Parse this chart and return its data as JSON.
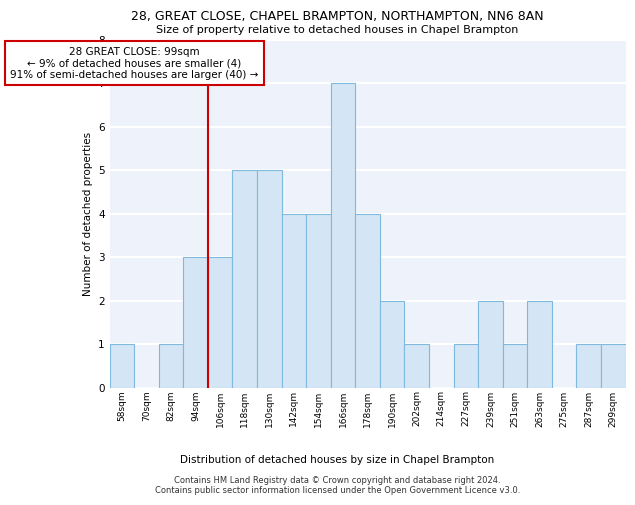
{
  "title1": "28, GREAT CLOSE, CHAPEL BRAMPTON, NORTHAMPTON, NN6 8AN",
  "title2": "Size of property relative to detached houses in Chapel Brampton",
  "xlabel": "Distribution of detached houses by size in Chapel Brampton",
  "ylabel": "Number of detached properties",
  "bin_labels": [
    "58sqm",
    "70sqm",
    "82sqm",
    "94sqm",
    "106sqm",
    "118sqm",
    "130sqm",
    "142sqm",
    "154sqm",
    "166sqm",
    "178sqm",
    "190sqm",
    "202sqm",
    "214sqm",
    "227sqm",
    "239sqm",
    "251sqm",
    "263sqm",
    "275sqm",
    "287sqm",
    "299sqm"
  ],
  "bar_heights": [
    1,
    0,
    1,
    3,
    3,
    5,
    5,
    4,
    4,
    7,
    4,
    2,
    1,
    0,
    1,
    2,
    1,
    2,
    0,
    1,
    1
  ],
  "bar_color": "#d4e6f5",
  "bar_edge_color": "#7fb9dd",
  "vline_x": 3.5,
  "annotation_text": "28 GREAT CLOSE: 99sqm\n← 9% of detached houses are smaller (4)\n91% of semi-detached houses are larger (40) →",
  "annotation_box_color": "#ffffff",
  "annotation_box_edge": "#cc0000",
  "ylim": [
    0,
    8
  ],
  "yticks": [
    0,
    1,
    2,
    3,
    4,
    5,
    6,
    7,
    8
  ],
  "footer": "Contains HM Land Registry data © Crown copyright and database right 2024.\nContains public sector information licensed under the Open Government Licence v3.0.",
  "background_color": "#eef2fa",
  "grid_color": "#ffffff",
  "vline_color": "#cc0000",
  "title1_fontsize": 9,
  "title2_fontsize": 8
}
